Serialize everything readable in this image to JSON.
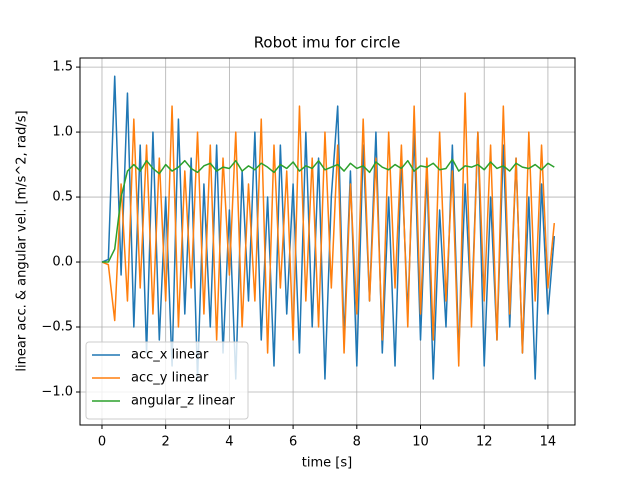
{
  "chart_data": {
    "type": "line",
    "title": "Robot imu for circle",
    "xlabel": "time [s]",
    "ylabel": "linear acc. & angular vel. [m/s^2, rad/s]",
    "x": [
      0,
      0.2,
      0.4,
      0.6,
      0.8,
      1,
      1.2,
      1.4,
      1.6,
      1.8,
      2,
      2.2,
      2.4,
      2.6,
      2.8,
      3,
      3.2,
      3.4,
      3.6,
      3.8,
      4,
      4.2,
      4.4,
      4.6,
      4.8,
      5,
      5.2,
      5.4,
      5.6,
      5.8,
      6,
      6.2,
      6.4,
      6.6,
      6.8,
      7,
      7.2,
      7.4,
      7.6,
      7.8,
      8,
      8.2,
      8.4,
      8.6,
      8.8,
      9,
      9.2,
      9.4,
      9.6,
      9.8,
      10,
      10.2,
      10.4,
      10.6,
      10.8,
      11,
      11.2,
      11.4,
      11.6,
      11.8,
      12,
      12.2,
      12.4,
      12.6,
      12.8,
      13,
      13.2,
      13.4,
      13.6,
      13.8,
      14,
      14.2
    ],
    "series": [
      {
        "name": "acc_x linear",
        "color": "#1f77b4",
        "values": [
          0,
          0.02,
          1.43,
          -0.1,
          1.3,
          -0.5,
          0.9,
          -0.7,
          1.0,
          -0.6,
          0.5,
          -0.8,
          1.1,
          -0.4,
          0.8,
          -0.9,
          0.6,
          -0.5,
          0.9,
          -0.7,
          0.4,
          -0.9,
          0.7,
          -0.3,
          1.0,
          -0.6,
          0.5,
          -0.8,
          0.9,
          -0.4,
          0.6,
          -0.7,
          1.0,
          -0.5,
          0.8,
          -0.9,
          0.5,
          1.2,
          -0.6,
          0.7,
          -0.8,
          0.9,
          -0.3,
          1.0,
          -0.7,
          0.5,
          -0.8,
          0.8,
          -0.4,
          1.0,
          -0.6,
          0.7,
          -0.9,
          0.4,
          -0.5,
          0.9,
          -0.7,
          0.6,
          -0.4,
          1.0,
          -0.8,
          0.5,
          -0.6,
          0.9,
          -0.5,
          0.8,
          -0.7,
          0.5,
          -0.9,
          0.6,
          -0.4,
          0.2
        ]
      },
      {
        "name": "acc_y linear",
        "color": "#ff7f0e",
        "values": [
          0,
          -0.02,
          -0.45,
          0.6,
          -0.3,
          1.1,
          -0.2,
          0.9,
          -0.4,
          0.8,
          -0.3,
          1.2,
          -0.5,
          0.7,
          -0.2,
          1.0,
          -0.4,
          0.9,
          -0.6,
          0.8,
          -0.1,
          1.0,
          -0.5,
          0.6,
          -0.3,
          1.1,
          -0.7,
          0.9,
          -0.2,
          0.7,
          -0.6,
          1.2,
          -0.3,
          0.8,
          -0.5,
          1.0,
          -0.2,
          0.9,
          -0.7,
          0.6,
          -0.4,
          1.1,
          -0.3,
          0.8,
          -0.6,
          1.0,
          -0.2,
          0.9,
          -0.5,
          1.2,
          -0.4,
          0.8,
          -0.6,
          1.0,
          -0.3,
          0.7,
          -0.8,
          1.3,
          -0.5,
          1.0,
          -0.3,
          0.9,
          -0.6,
          1.2,
          -0.4,
          0.8,
          -0.7,
          1.0,
          -0.3,
          0.9,
          -0.2,
          0.3
        ]
      },
      {
        "name": "angular_z linear",
        "color": "#2ca02c",
        "values": [
          0,
          0,
          0.1,
          0.5,
          0.7,
          0.75,
          0.7,
          0.78,
          0.72,
          0.68,
          0.75,
          0.7,
          0.73,
          0.78,
          0.72,
          0.69,
          0.74,
          0.76,
          0.7,
          0.73,
          0.72,
          0.78,
          0.7,
          0.74,
          0.71,
          0.76,
          0.73,
          0.69,
          0.75,
          0.72,
          0.77,
          0.7,
          0.74,
          0.72,
          0.78,
          0.71,
          0.73,
          0.75,
          0.7,
          0.76,
          0.72,
          0.74,
          0.69,
          0.77,
          0.73,
          0.71,
          0.75,
          0.72,
          0.78,
          0.7,
          0.74,
          0.73,
          0.76,
          0.71,
          0.72,
          0.79,
          0.7,
          0.74,
          0.73,
          0.75,
          0.71,
          0.77,
          0.72,
          0.74,
          0.7,
          0.76,
          0.73,
          0.72,
          0.75,
          0.71,
          0.76,
          0.73
        ]
      }
    ],
    "xlim": [
      -0.69,
      14.85
    ],
    "ylim": [
      -1.254,
      1.57
    ],
    "xticks": [
      0,
      2,
      4,
      6,
      8,
      10,
      12,
      14
    ],
    "yticks": [
      {
        "value": -1,
        "label": "−1.0"
      },
      {
        "value": -0.5,
        "label": "−0.5"
      },
      {
        "value": 0,
        "label": "0.0"
      },
      {
        "value": 0.5,
        "label": "0.5"
      },
      {
        "value": 1,
        "label": "1.0"
      },
      {
        "value": 1.5,
        "label": "1.5"
      }
    ],
    "grid": true,
    "legend": "lower left"
  }
}
